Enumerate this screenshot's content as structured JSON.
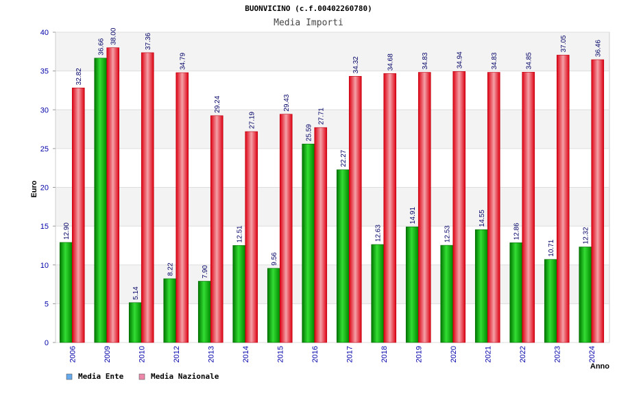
{
  "chart_data": {
    "type": "bar",
    "title": "BUONVICINO (c.f.00402260780)",
    "subtitle": "Media Importi",
    "ylabel": "Euro",
    "xlabel": "Anno",
    "ylim": [
      0,
      40
    ],
    "yticks": [
      0,
      5,
      10,
      15,
      20,
      25,
      30,
      35,
      40
    ],
    "grid": true,
    "legend_position": "bottom-left",
    "categories": [
      "2006",
      "2009",
      "2010",
      "2012",
      "2013",
      "2014",
      "2015",
      "2016",
      "2017",
      "2018",
      "2019",
      "2020",
      "2021",
      "2022",
      "2023",
      "2024"
    ],
    "series": [
      {
        "name": "Media Ente",
        "color": "#00aa00",
        "legend_color": "#66aaee",
        "values": [
          12.9,
          36.66,
          5.14,
          8.22,
          7.9,
          12.51,
          9.56,
          25.59,
          22.27,
          12.63,
          14.91,
          12.53,
          14.55,
          12.86,
          10.71,
          12.32
        ],
        "labels": [
          "12.90",
          "36.66",
          "5.14",
          "8.22",
          "7.90",
          "12.51",
          "9.56",
          "25.59",
          "22.27",
          "12.63",
          "14.91",
          "12.53",
          "14.55",
          "12.86",
          "10.71",
          "12.32"
        ]
      },
      {
        "name": "Media Nazionale",
        "color": "#ee1122",
        "legend_color": "#ee88aa",
        "values": [
          32.82,
          38.0,
          37.36,
          34.79,
          29.24,
          27.19,
          29.43,
          27.71,
          34.32,
          34.68,
          34.83,
          34.94,
          34.83,
          34.85,
          37.05,
          36.46
        ],
        "labels": [
          "32.82",
          "38.00",
          "37.36",
          "34.79",
          "29.24",
          "27.19",
          "29.43",
          "27.71",
          "34.32",
          "34.68",
          "34.83",
          "34.94",
          "34.83",
          "34.85",
          "37.05",
          "36.46"
        ]
      }
    ]
  }
}
